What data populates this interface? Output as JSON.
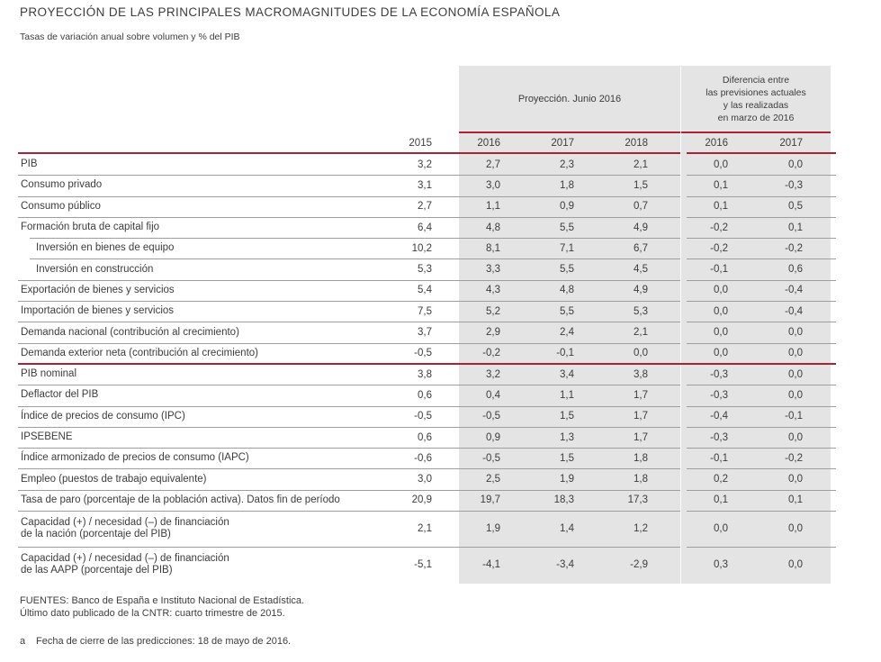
{
  "title": "PROYECCIÓN DE LAS PRINCIPALES MACROMAGNITUDES DE LA ECONOMÍA ESPAÑOLA",
  "subtitle": "Tasas de variación anual sobre volumen y % del PIB",
  "colors": {
    "accent_red": "#a92337",
    "shade_gray": "#e4e4e4",
    "text": "#3c3c3b",
    "separator_gray": "#9e9e9e"
  },
  "table": {
    "col_2015": "2015",
    "group1": {
      "title": "Proyección. Junio 2016",
      "years": [
        "2016",
        "2017",
        "2018"
      ]
    },
    "group2": {
      "title": "Diferencia entre\nlas previsiones actuales\ny las realizadas\nen marzo de 2016",
      "years": [
        "2016",
        "2017"
      ]
    },
    "rows": [
      {
        "label": "PIB",
        "v2015": "3,2",
        "proj": [
          "2,7",
          "2,3",
          "2,1"
        ],
        "diff": [
          "0,0",
          "0,0"
        ]
      },
      {
        "label": "Consumo privado",
        "v2015": "3,1",
        "proj": [
          "3,0",
          "1,8",
          "1,5"
        ],
        "diff": [
          "0,1",
          "-0,3"
        ]
      },
      {
        "label": "Consumo público",
        "v2015": "2,7",
        "proj": [
          "1,1",
          "0,9",
          "0,7"
        ],
        "diff": [
          "0,1",
          "0,5"
        ]
      },
      {
        "label": "Formación bruta de capital fijo",
        "v2015": "6,4",
        "proj": [
          "4,8",
          "5,5",
          "4,9"
        ],
        "diff": [
          "-0,2",
          "0,1"
        ]
      },
      {
        "label": "Inversión en bienes de equipo",
        "indent": true,
        "v2015": "10,2",
        "proj": [
          "8,1",
          "7,1",
          "6,7"
        ],
        "diff": [
          "-0,2",
          "-0,2"
        ]
      },
      {
        "label": "Inversión en construcción",
        "indent": true,
        "v2015": "5,3",
        "proj": [
          "3,3",
          "5,5",
          "4,5"
        ],
        "diff": [
          "-0,1",
          "0,6"
        ]
      },
      {
        "label": "Exportación de bienes y servicios",
        "v2015": "5,4",
        "proj": [
          "4,3",
          "4,8",
          "4,9"
        ],
        "diff": [
          "0,0",
          "-0,4"
        ]
      },
      {
        "label": "Importación de bienes y servicios",
        "v2015": "7,5",
        "proj": [
          "5,2",
          "5,5",
          "5,3"
        ],
        "diff": [
          "0,0",
          "-0,4"
        ]
      },
      {
        "label": "Demanda nacional (contribución al crecimiento)",
        "v2015": "3,7",
        "proj": [
          "2,9",
          "2,4",
          "2,1"
        ],
        "diff": [
          "0,0",
          "0,0"
        ]
      },
      {
        "label": "Demanda exterior neta (contribución al crecimiento)",
        "v2015": "-0,5",
        "proj": [
          "-0,2",
          "-0,1",
          "0,0"
        ],
        "diff": [
          "0,0",
          "0,0"
        ]
      },
      {
        "label": "PIB nominal",
        "red_top": true,
        "v2015": "3,8",
        "proj": [
          "3,2",
          "3,4",
          "3,8"
        ],
        "diff": [
          "-0,3",
          "0,0"
        ]
      },
      {
        "label": "Deflactor del PIB",
        "v2015": "0,6",
        "proj": [
          "0,4",
          "1,1",
          "1,7"
        ],
        "diff": [
          "-0,3",
          "0,0"
        ]
      },
      {
        "label": "Índice de precios de consumo (IPC)",
        "v2015": "-0,5",
        "proj": [
          "-0,5",
          "1,5",
          "1,7"
        ],
        "diff": [
          "-0,4",
          "-0,1"
        ]
      },
      {
        "label": "IPSEBENE",
        "v2015": "0,6",
        "proj": [
          "0,9",
          "1,3",
          "1,7"
        ],
        "diff": [
          "-0,3",
          "0,0"
        ]
      },
      {
        "label": "Índice armonizado de precios de consumo (IAPC)",
        "v2015": "-0,6",
        "proj": [
          "-0,5",
          "1,5",
          "1,8"
        ],
        "diff": [
          "-0,1",
          "-0,2"
        ]
      },
      {
        "label": "Empleo (puestos de trabajo equivalente)",
        "v2015": "3,0",
        "proj": [
          "2,5",
          "1,9",
          "1,8"
        ],
        "diff": [
          "0,2",
          "0,0"
        ]
      },
      {
        "label": "Tasa de paro (porcentaje de la población activa). Datos fin de período",
        "v2015": "20,9",
        "proj": [
          "19,7",
          "18,3",
          "17,3"
        ],
        "diff": [
          "0,1",
          "0,1"
        ]
      },
      {
        "label": "Capacidad (+) / necesidad (–) de financiación\nde la nación (porcentaje del PIB)",
        "tall": true,
        "v2015": "2,1",
        "proj": [
          "1,9",
          "1,4",
          "1,2"
        ],
        "diff": [
          "0,0",
          "0,0"
        ]
      },
      {
        "label": "Capacidad (+) / necesidad (–) de financiación\nde las AAPP (porcentaje del PIB)",
        "tall": true,
        "v2015": "-5,1",
        "proj": [
          "-4,1",
          "-3,4",
          "-2,9"
        ],
        "diff": [
          "0,3",
          "0,0"
        ]
      }
    ]
  },
  "footer": {
    "sources": "FUENTES: Banco de España e Instituto Nacional de Estadística.",
    "last_data": "Último dato publicado de la CNTR: cuarto trimestre de 2015.",
    "footnote_marker": "a",
    "footnote_text": "Fecha de cierre de las predicciones:  18 de mayo de 2016."
  }
}
